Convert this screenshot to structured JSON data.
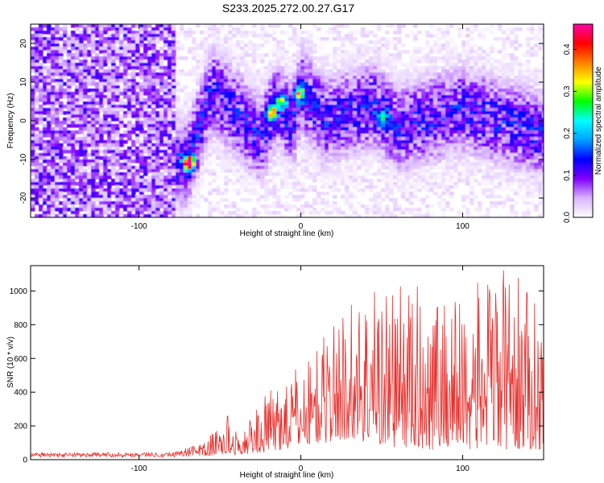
{
  "figure": {
    "title": "S233.2025.272.00.27.G17"
  },
  "chart_data": [
    {
      "type": "heatmap",
      "name": "spectrogram",
      "xlabel": "Height of straight line (km)",
      "ylabel": "Frequency (Hz)",
      "xlim": [
        -167,
        150
      ],
      "ylim": [
        -25,
        25
      ],
      "xticks": [
        -100,
        0,
        100
      ],
      "xtick_labels": [
        "-100",
        "0",
        "100"
      ],
      "yticks": [
        20,
        10,
        0,
        -10,
        -20
      ],
      "ytick_labels": [
        "20",
        "10",
        "0",
        "-10",
        "-20"
      ],
      "colorbar": {
        "label": "Normalized spectral amplitude",
        "range": [
          0,
          0.46
        ],
        "ticks": [
          0.0,
          0.1,
          0.2,
          0.3,
          0.4
        ],
        "tick_labels": [
          "0.0",
          "0.1",
          "0.2",
          "0.3",
          "0.4"
        ],
        "colors": [
          "#ffffff",
          "#d9b3ff",
          "#8000ff",
          "#0000ff",
          "#00a0ff",
          "#00ffff",
          "#00ff00",
          "#ffff00",
          "#ff8000",
          "#ff0000",
          "#ff00aa"
        ]
      },
      "ridge_frequency_hz": [
        {
          "x": -70,
          "y": -11
        },
        {
          "x": -55,
          "y": 8
        },
        {
          "x": -40,
          "y": 2
        },
        {
          "x": -25,
          "y": -5
        },
        {
          "x": -15,
          "y": 4
        },
        {
          "x": -5,
          "y": -1
        },
        {
          "x": 0,
          "y": 8
        },
        {
          "x": 15,
          "y": 0
        },
        {
          "x": 45,
          "y": 4
        },
        {
          "x": 60,
          "y": -2
        },
        {
          "x": 100,
          "y": 3
        },
        {
          "x": 145,
          "y": -3
        }
      ],
      "hotspots": [
        {
          "x": -69,
          "y": -11,
          "amp": 0.45
        },
        {
          "x": -18,
          "y": 2,
          "amp": 0.3
        },
        {
          "x": -12,
          "y": 5,
          "amp": 0.22
        },
        {
          "x": -1,
          "y": 7,
          "amp": 0.25
        },
        {
          "x": 50,
          "y": 1,
          "amp": 0.18
        }
      ]
    },
    {
      "type": "line",
      "name": "snr",
      "xlabel": "Height of straight line (km)",
      "ylabel": "SNR (10 * v/v)",
      "xlim": [
        -167,
        150
      ],
      "ylim": [
        0,
        1150
      ],
      "xticks": [
        -100,
        0,
        100
      ],
      "xtick_labels": [
        "-100",
        "0",
        "100"
      ],
      "yticks": [
        0,
        200,
        400,
        600,
        800,
        1000
      ],
      "ytick_labels": [
        "0",
        "200",
        "400",
        "600",
        "800",
        "1000"
      ],
      "color": "#e8312e",
      "envelope": [
        {
          "x": -167,
          "low": 15,
          "high": 40
        },
        {
          "x": -80,
          "low": 15,
          "high": 45
        },
        {
          "x": -60,
          "low": 20,
          "high": 100
        },
        {
          "x": -45,
          "low": 30,
          "high": 280
        },
        {
          "x": -38,
          "low": 30,
          "high": 120
        },
        {
          "x": -25,
          "low": 40,
          "high": 350
        },
        {
          "x": -10,
          "low": 60,
          "high": 500
        },
        {
          "x": 0,
          "low": 80,
          "high": 560
        },
        {
          "x": 15,
          "low": 100,
          "high": 750
        },
        {
          "x": 30,
          "low": 120,
          "high": 950
        },
        {
          "x": 50,
          "low": 80,
          "high": 1080
        },
        {
          "x": 75,
          "low": 60,
          "high": 1020
        },
        {
          "x": 100,
          "low": 60,
          "high": 1000
        },
        {
          "x": 128,
          "low": 60,
          "high": 1150
        },
        {
          "x": 150,
          "low": 60,
          "high": 900
        }
      ]
    }
  ]
}
